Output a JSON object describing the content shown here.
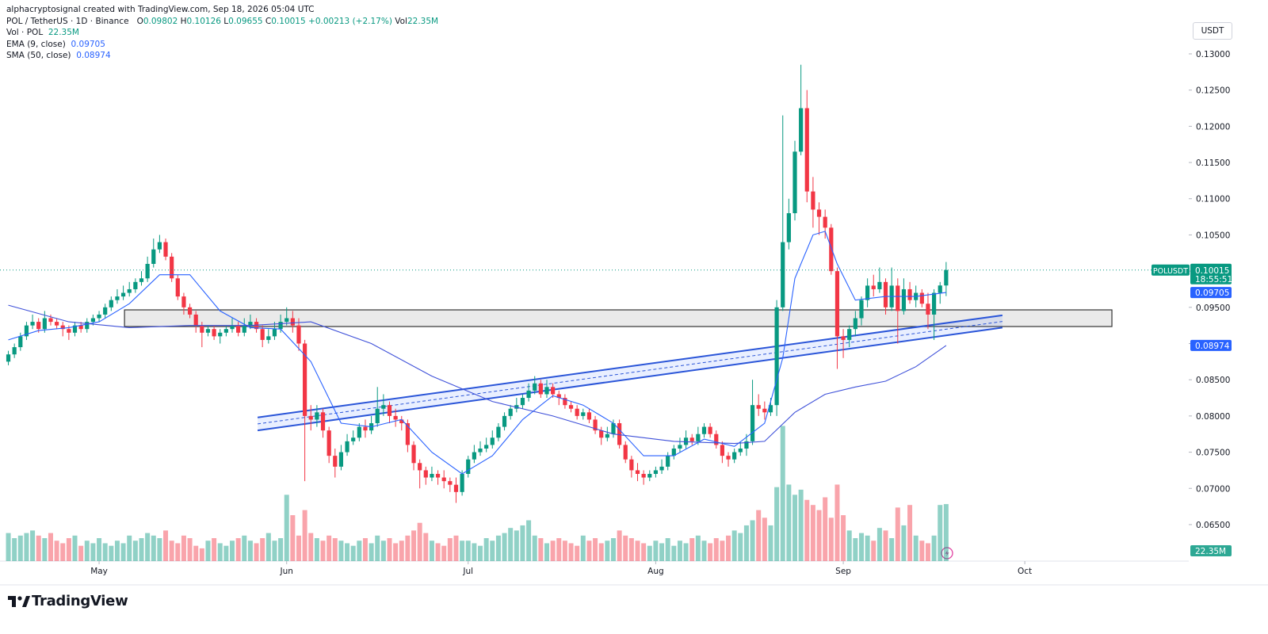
{
  "chart_data": {
    "type": "candlestick",
    "header": {
      "watermark": "alphacryptosignal created with TradingView.com, Sep 18, 2026 05:04 UTC",
      "symbol": "POL / TetherUS · 1D · Binance",
      "ohlc_prefixes": [
        "O",
        "H",
        "L",
        "C"
      ],
      "change": "+0.00213 (+2.17%)",
      "vol_prefix": "Vol"
    },
    "currency": "USDT",
    "symbol_tag": "POLUSDT",
    "countdown": "18:55:51",
    "brand": "TradingView",
    "up_color": "#089981",
    "down_color": "#f23645",
    "candles": {
      "open": [
        0.0875,
        0.0885,
        0.0895,
        0.091,
        0.0925,
        0.093,
        0.092,
        0.0935,
        0.093,
        0.0925,
        0.092,
        0.0915,
        0.0925,
        0.092,
        0.093,
        0.0935,
        0.094,
        0.095,
        0.096,
        0.0965,
        0.097,
        0.0975,
        0.0985,
        0.099,
        0.101,
        0.103,
        0.104,
        0.102,
        0.099,
        0.0965,
        0.095,
        0.094,
        0.0925,
        0.0915,
        0.092,
        0.091,
        0.0915,
        0.092,
        0.0925,
        0.0915,
        0.0925,
        0.093,
        0.092,
        0.0905,
        0.091,
        0.092,
        0.093,
        0.0935,
        0.0925,
        0.09,
        0.08,
        0.0795,
        0.0805,
        0.078,
        0.0745,
        0.073,
        0.075,
        0.0765,
        0.077,
        0.0785,
        0.078,
        0.079,
        0.081,
        0.0815,
        0.08,
        0.0795,
        0.079,
        0.076,
        0.0735,
        0.0725,
        0.0715,
        0.072,
        0.0715,
        0.071,
        0.0705,
        0.0695,
        0.072,
        0.074,
        0.075,
        0.0755,
        0.076,
        0.077,
        0.0785,
        0.08,
        0.081,
        0.0815,
        0.0825,
        0.0835,
        0.0845,
        0.083,
        0.084,
        0.083,
        0.0825,
        0.0815,
        0.081,
        0.08,
        0.0805,
        0.0795,
        0.078,
        0.077,
        0.0775,
        0.079,
        0.076,
        0.074,
        0.0725,
        0.072,
        0.0715,
        0.072,
        0.0725,
        0.073,
        0.0745,
        0.0755,
        0.076,
        0.077,
        0.0765,
        0.0775,
        0.0785,
        0.0775,
        0.076,
        0.0745,
        0.074,
        0.075,
        0.0755,
        0.0765,
        0.0815,
        0.081,
        0.0805,
        0.0815,
        0.095,
        0.104,
        0.108,
        0.1165,
        0.1225,
        0.111,
        0.1085,
        0.1075,
        0.106,
        0.1,
        0.091,
        0.0905,
        0.092,
        0.0935,
        0.096,
        0.098,
        0.0975,
        0.0985,
        0.095,
        0.098,
        0.0945,
        0.0975,
        0.096,
        0.097,
        0.0955,
        0.094,
        0.097,
        0.09802
      ],
      "high": [
        0.089,
        0.09,
        0.0915,
        0.093,
        0.094,
        0.0935,
        0.0945,
        0.094,
        0.0935,
        0.093,
        0.0925,
        0.093,
        0.093,
        0.0935,
        0.094,
        0.0945,
        0.0955,
        0.0965,
        0.0975,
        0.098,
        0.0985,
        0.099,
        0.1,
        0.102,
        0.1045,
        0.105,
        0.1045,
        0.1025,
        0.0995,
        0.097,
        0.0955,
        0.0945,
        0.093,
        0.0925,
        0.0925,
        0.092,
        0.0925,
        0.0935,
        0.093,
        0.0935,
        0.094,
        0.0935,
        0.0925,
        0.092,
        0.093,
        0.094,
        0.095,
        0.0945,
        0.0935,
        0.0905,
        0.0815,
        0.0815,
        0.081,
        0.0785,
        0.0755,
        0.076,
        0.0775,
        0.078,
        0.079,
        0.0795,
        0.08,
        0.084,
        0.083,
        0.082,
        0.081,
        0.08,
        0.0795,
        0.0765,
        0.074,
        0.073,
        0.073,
        0.0725,
        0.0725,
        0.0715,
        0.0715,
        0.0725,
        0.0745,
        0.076,
        0.0765,
        0.077,
        0.078,
        0.079,
        0.0805,
        0.0815,
        0.0825,
        0.083,
        0.0845,
        0.0855,
        0.085,
        0.085,
        0.0845,
        0.0835,
        0.083,
        0.082,
        0.0815,
        0.081,
        0.081,
        0.08,
        0.0785,
        0.0785,
        0.0795,
        0.0795,
        0.0765,
        0.0745,
        0.0735,
        0.0725,
        0.0725,
        0.073,
        0.074,
        0.075,
        0.076,
        0.077,
        0.078,
        0.0775,
        0.0785,
        0.079,
        0.079,
        0.078,
        0.0765,
        0.075,
        0.0755,
        0.0765,
        0.0775,
        0.085,
        0.083,
        0.082,
        0.0825,
        0.096,
        0.1215,
        0.11,
        0.118,
        0.1285,
        0.125,
        0.113,
        0.1095,
        0.1085,
        0.1065,
        0.1005,
        0.092,
        0.0925,
        0.0945,
        0.0965,
        0.099,
        0.0995,
        0.1005,
        0.099,
        0.1005,
        0.099,
        0.099,
        0.0985,
        0.098,
        0.0975,
        0.097,
        0.0975,
        0.0985,
        0.10126
      ],
      "low": [
        0.087,
        0.088,
        0.089,
        0.0905,
        0.092,
        0.0915,
        0.0915,
        0.0925,
        0.092,
        0.091,
        0.0905,
        0.091,
        0.0915,
        0.0915,
        0.0925,
        0.093,
        0.0935,
        0.0945,
        0.0955,
        0.096,
        0.0965,
        0.097,
        0.098,
        0.0985,
        0.1005,
        0.1025,
        0.1015,
        0.0985,
        0.096,
        0.094,
        0.0935,
        0.0915,
        0.0895,
        0.091,
        0.0905,
        0.09,
        0.091,
        0.0915,
        0.091,
        0.091,
        0.092,
        0.0915,
        0.0895,
        0.09,
        0.0905,
        0.0915,
        0.0925,
        0.0915,
        0.089,
        0.071,
        0.078,
        0.0785,
        0.077,
        0.0735,
        0.0715,
        0.0725,
        0.0745,
        0.076,
        0.0765,
        0.077,
        0.0775,
        0.0785,
        0.08,
        0.079,
        0.0785,
        0.078,
        0.075,
        0.0725,
        0.07,
        0.0705,
        0.071,
        0.0705,
        0.07,
        0.0695,
        0.068,
        0.069,
        0.0715,
        0.0735,
        0.0745,
        0.075,
        0.0755,
        0.0765,
        0.078,
        0.0795,
        0.0805,
        0.081,
        0.082,
        0.083,
        0.0825,
        0.0825,
        0.0825,
        0.0815,
        0.081,
        0.0805,
        0.0795,
        0.0795,
        0.079,
        0.0775,
        0.076,
        0.0765,
        0.077,
        0.0755,
        0.0735,
        0.0715,
        0.071,
        0.0705,
        0.071,
        0.0715,
        0.072,
        0.0725,
        0.074,
        0.075,
        0.0755,
        0.076,
        0.076,
        0.077,
        0.077,
        0.0755,
        0.0735,
        0.073,
        0.0735,
        0.0745,
        0.0745,
        0.076,
        0.08,
        0.0795,
        0.08,
        0.08,
        0.0945,
        0.103,
        0.107,
        0.116,
        0.1095,
        0.106,
        0.105,
        0.1045,
        0.0995,
        0.0865,
        0.088,
        0.0895,
        0.091,
        0.0925,
        0.095,
        0.0965,
        0.097,
        0.094,
        0.0945,
        0.09,
        0.094,
        0.0955,
        0.095,
        0.095,
        0.092,
        0.0905,
        0.0955,
        0.09655
      ],
      "close": [
        0.0885,
        0.0895,
        0.091,
        0.0925,
        0.093,
        0.092,
        0.0935,
        0.093,
        0.0925,
        0.092,
        0.0915,
        0.0925,
        0.092,
        0.093,
        0.0935,
        0.094,
        0.095,
        0.096,
        0.0965,
        0.097,
        0.0975,
        0.0985,
        0.099,
        0.101,
        0.103,
        0.104,
        0.102,
        0.099,
        0.0965,
        0.095,
        0.094,
        0.0925,
        0.0915,
        0.092,
        0.091,
        0.0915,
        0.092,
        0.0925,
        0.0915,
        0.0925,
        0.093,
        0.092,
        0.0905,
        0.091,
        0.092,
        0.093,
        0.0935,
        0.0925,
        0.09,
        0.08,
        0.0795,
        0.0805,
        0.078,
        0.0745,
        0.073,
        0.075,
        0.0765,
        0.077,
        0.0785,
        0.078,
        0.079,
        0.081,
        0.0815,
        0.08,
        0.0795,
        0.079,
        0.076,
        0.0735,
        0.0725,
        0.0715,
        0.072,
        0.0715,
        0.071,
        0.0705,
        0.0695,
        0.072,
        0.074,
        0.075,
        0.0755,
        0.076,
        0.077,
        0.0785,
        0.08,
        0.081,
        0.0815,
        0.0825,
        0.0835,
        0.0845,
        0.083,
        0.084,
        0.083,
        0.0825,
        0.0815,
        0.081,
        0.08,
        0.0805,
        0.0795,
        0.078,
        0.077,
        0.0775,
        0.079,
        0.076,
        0.074,
        0.0725,
        0.072,
        0.0715,
        0.072,
        0.0725,
        0.073,
        0.0745,
        0.0755,
        0.076,
        0.077,
        0.0765,
        0.0775,
        0.0785,
        0.0775,
        0.076,
        0.0745,
        0.074,
        0.075,
        0.0755,
        0.0765,
        0.0815,
        0.081,
        0.0805,
        0.0815,
        0.095,
        0.104,
        0.108,
        0.1165,
        0.1225,
        0.111,
        0.1085,
        0.1075,
        0.106,
        0.1,
        0.091,
        0.0905,
        0.092,
        0.0935,
        0.096,
        0.098,
        0.0975,
        0.0985,
        0.095,
        0.098,
        0.0945,
        0.0975,
        0.096,
        0.097,
        0.0955,
        0.094,
        0.097,
        0.09802,
        0.10015
      ]
    },
    "volume": {
      "name": "Vol · POL",
      "value_label": "22.35M",
      "ylim": [
        0,
        220
      ],
      "values": [
        11,
        9,
        10,
        11,
        12,
        10,
        9,
        11,
        8,
        7,
        9,
        10,
        6,
        8,
        7,
        9,
        7,
        6,
        8,
        7,
        10,
        8,
        9,
        11,
        10,
        9,
        12,
        8,
        7,
        10,
        9,
        6,
        5,
        8,
        9,
        7,
        6,
        8,
        9,
        10,
        8,
        7,
        9,
        11,
        8,
        9,
        26,
        18,
        10,
        20,
        11,
        9,
        8,
        10,
        9,
        8,
        7,
        6,
        8,
        9,
        7,
        10,
        8,
        9,
        7,
        8,
        10,
        12,
        15,
        11,
        8,
        7,
        6,
        9,
        10,
        8,
        8,
        7,
        6,
        9,
        8,
        10,
        11,
        13,
        12,
        14,
        16,
        10,
        9,
        7,
        8,
        9,
        8,
        7,
        6,
        10,
        8,
        9,
        7,
        8,
        9,
        12,
        10,
        9,
        8,
        7,
        6,
        8,
        7,
        9,
        6,
        8,
        7,
        9,
        10,
        8,
        7,
        9,
        8,
        10,
        12,
        11,
        14,
        16,
        20,
        17,
        14,
        29,
        53,
        30,
        26,
        28,
        24,
        22,
        20,
        25,
        17,
        30,
        18,
        12,
        9,
        11,
        10,
        8,
        13,
        12,
        9,
        21,
        14,
        22,
        10,
        8,
        7,
        10,
        22,
        22.35
      ]
    },
    "series": [
      {
        "name": "EMA (9, close)",
        "color": "#2962ff",
        "x": [
          0,
          5,
          10,
          15,
          20,
          25,
          30,
          35,
          40,
          45,
          50,
          55,
          60,
          65,
          70,
          75,
          80,
          85,
          90,
          95,
          100,
          105,
          110,
          115,
          120,
          125,
          128,
          130,
          133,
          135,
          137,
          140,
          145,
          150,
          155
        ],
        "values": [
          0.0905,
          0.0918,
          0.0922,
          0.093,
          0.0955,
          0.0995,
          0.0995,
          0.0945,
          0.0922,
          0.092,
          0.0875,
          0.079,
          0.0785,
          0.0795,
          0.075,
          0.072,
          0.0745,
          0.0795,
          0.0828,
          0.0815,
          0.079,
          0.0745,
          0.0745,
          0.0768,
          0.0758,
          0.079,
          0.088,
          0.099,
          0.105,
          0.1055,
          0.101,
          0.096,
          0.0965,
          0.0965,
          0.09705
        ]
      },
      {
        "name": "SMA (50, close)",
        "color": "#3f51d9",
        "x": [
          0,
          10,
          20,
          30,
          40,
          50,
          60,
          70,
          80,
          90,
          100,
          110,
          120,
          125,
          130,
          135,
          140,
          145,
          150,
          155
        ],
        "values": [
          0.0953,
          0.093,
          0.0922,
          0.0925,
          0.0925,
          0.093,
          0.09,
          0.0855,
          0.082,
          0.08,
          0.0775,
          0.0765,
          0.0762,
          0.0765,
          0.0805,
          0.083,
          0.084,
          0.0848,
          0.0868,
          0.08974
        ]
      }
    ],
    "drawings": {
      "zone": {
        "x": [
          19.2,
          182.4
        ],
        "y": [
          0.09235,
          0.09465
        ]
      },
      "channel": {
        "x": [
          41.2,
          164.3
        ],
        "upper": [
          0.0798,
          0.0939
        ],
        "lower": [
          0.078,
          0.0922
        ]
      }
    },
    "xlim": [
      -1.38,
      195.1
    ],
    "ylim": [
      0.05996,
      0.13744
    ],
    "xticks": [
      {
        "value": 15,
        "label": "May"
      },
      {
        "value": 46,
        "label": "Jun"
      },
      {
        "value": 76,
        "label": "Jul"
      },
      {
        "value": 107,
        "label": "Aug"
      },
      {
        "value": 138,
        "label": "Sep"
      },
      {
        "value": 168,
        "label": "Oct"
      }
    ],
    "yticks": [
      {
        "value": 0.065,
        "label": "0.06500"
      },
      {
        "value": 0.07,
        "label": "0.07000"
      },
      {
        "value": 0.075,
        "label": "0.07500"
      },
      {
        "value": 0.08,
        "label": "0.08000"
      },
      {
        "value": 0.085,
        "label": "0.08500"
      },
      {
        "value": 0.09,
        "label": "0.09000"
      },
      {
        "value": 0.095,
        "label": "0.09500"
      },
      {
        "value": 0.1,
        "label": "0.10000"
      },
      {
        "value": 0.105,
        "label": "0.10500"
      },
      {
        "value": 0.11,
        "label": "0.11000"
      },
      {
        "value": 0.115,
        "label": "0.11500"
      },
      {
        "value": 0.12,
        "label": "0.12000"
      },
      {
        "value": 0.125,
        "label": "0.12500"
      },
      {
        "value": 0.13,
        "label": "0.13000"
      }
    ],
    "grid": false
  }
}
